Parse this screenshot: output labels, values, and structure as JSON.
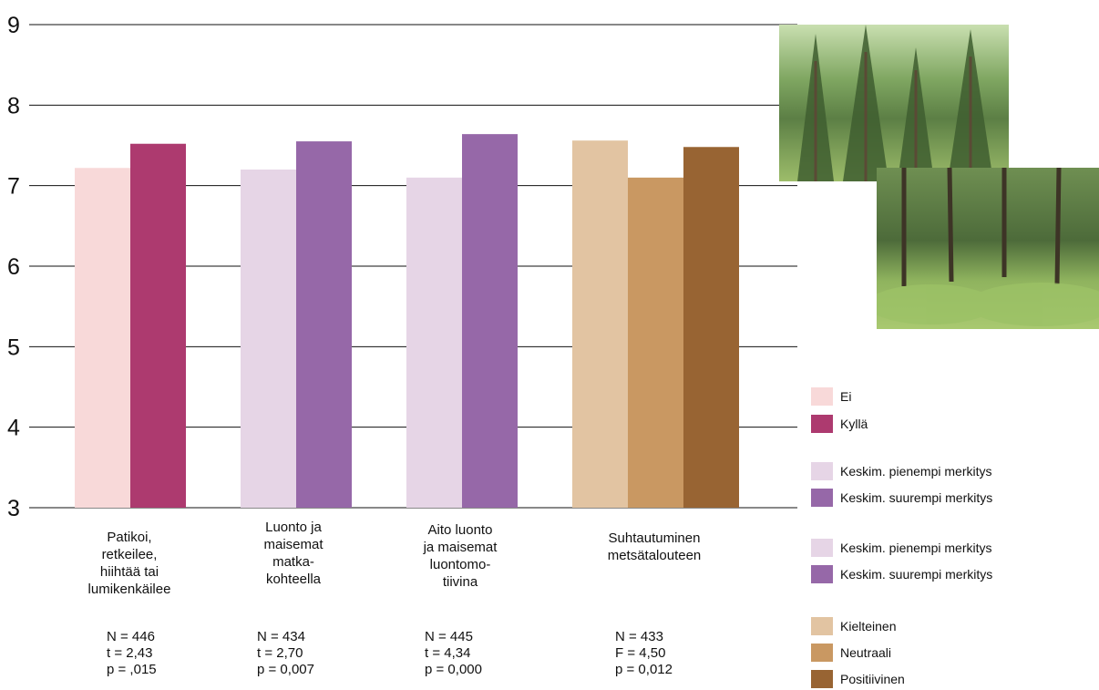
{
  "chart_data": {
    "type": "bar",
    "ylim": [
      3,
      9
    ],
    "yticks": [
      3,
      4,
      5,
      6,
      7,
      8,
      9
    ],
    "grid": true,
    "groups": [
      {
        "label_lines": [
          "Patikoi,",
          "retkeilee,",
          "hiihtää tai",
          "lumikenkäilee"
        ],
        "stats_lines": [
          "N = 446",
          "t = 2,43",
          "p = ,015"
        ],
        "bars": [
          {
            "series": "Ei",
            "value": 7.22,
            "color": "#f8d9d9"
          },
          {
            "series": "Kyllä",
            "value": 7.52,
            "color": "#ad3a6f"
          }
        ]
      },
      {
        "label_lines": [
          "Luonto ja",
          "maisemat",
          "matka-",
          "kohteella"
        ],
        "stats_lines": [
          "N = 434",
          "t = 2,70",
          "p = 0,007"
        ],
        "bars": [
          {
            "series": "Keskim. pienempi merkitys",
            "value": 7.2,
            "color": "#e6d5e6"
          },
          {
            "series": "Keskim. suurempi merkitys",
            "value": 7.55,
            "color": "#9668a8"
          }
        ]
      },
      {
        "label_lines": [
          "Aito luonto",
          "ja maisemat",
          "luontomo-",
          "tiivina"
        ],
        "stats_lines": [
          "N = 445",
          "t = 4,34",
          "p = 0,000"
        ],
        "bars": [
          {
            "series": "Keskim. pienempi merkitys",
            "value": 7.1,
            "color": "#e6d5e6"
          },
          {
            "series": "Keskim. suurempi merkitys",
            "value": 7.64,
            "color": "#9668a8"
          }
        ]
      },
      {
        "label_lines": [
          "Suhtautuminen",
          "metsätalouteen"
        ],
        "stats_lines": [
          "N = 433",
          "F = 4,50",
          "p = 0,012"
        ],
        "bars": [
          {
            "series": "Kielteinen",
            "value": 7.56,
            "color": "#e2c4a2"
          },
          {
            "series": "Neutraali",
            "value": 7.1,
            "color": "#c99862"
          },
          {
            "series": "Positiivinen",
            "value": 7.48,
            "color": "#986433"
          }
        ]
      }
    ],
    "legend": [
      {
        "label": "Ei",
        "color": "#f8d9d9"
      },
      {
        "label": "Kyllä",
        "color": "#ad3a6f"
      },
      {
        "label": "Keskim. pienempi merkitys",
        "color": "#e6d5e6"
      },
      {
        "label": "Keskim. suurempi merkitys",
        "color": "#9668a8"
      },
      {
        "label": "Keskim. pienempi merkitys",
        "color": "#e6d5e6"
      },
      {
        "label": "Keskim. suurempi merkitys",
        "color": "#9668a8"
      },
      {
        "label": "Kielteinen",
        "color": "#e2c4a2"
      },
      {
        "label": "Neutraali",
        "color": "#c99862"
      },
      {
        "label": "Positiivinen",
        "color": "#986433"
      }
    ]
  }
}
